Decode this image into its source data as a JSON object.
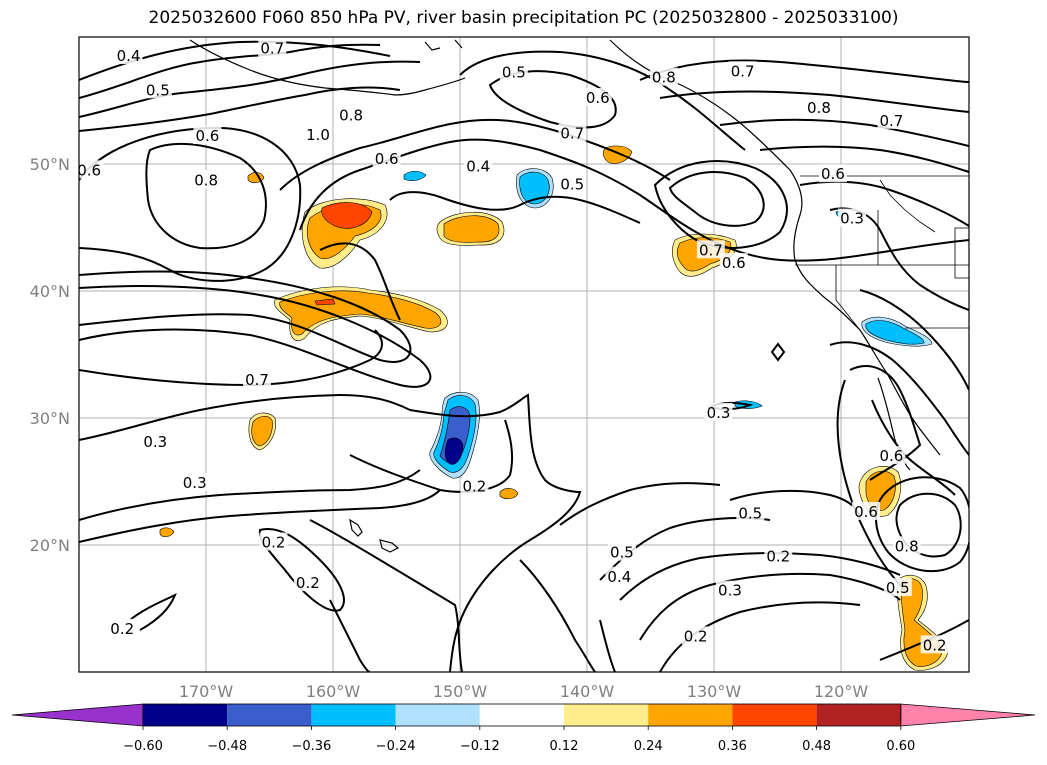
{
  "title": "2025032600 F060 850 hPa PV, river basin precipitation PC (2025032800 - 2025033100)",
  "map": {
    "projection": "plate-carree",
    "lon_range": [
      -180,
      -110
    ],
    "lat_range": [
      10,
      60
    ],
    "gridlines": true,
    "x_ticks": [
      "170°W",
      "160°W",
      "150°W",
      "140°W",
      "130°W",
      "120°W"
    ],
    "y_ticks": [
      "50°N",
      "40°N",
      "30°N",
      "20°N"
    ]
  },
  "contour_labels": [
    {
      "text": "0.4",
      "lon": -176.1,
      "lat": 58.5
    },
    {
      "text": "0.5",
      "lon": -173.8,
      "lat": 55.8
    },
    {
      "text": "0.7",
      "lon": -164.8,
      "lat": 59.1
    },
    {
      "text": "0.6",
      "lon": -169.9,
      "lat": 52.2
    },
    {
      "text": "1.0",
      "lon": -161.2,
      "lat": 52.3
    },
    {
      "text": "0.8",
      "lon": -158.6,
      "lat": 53.8
    },
    {
      "text": "0.6",
      "lon": -155.8,
      "lat": 50.4
    },
    {
      "text": "0.8",
      "lon": -170.0,
      "lat": 48.7
    },
    {
      "text": "0.6",
      "lon": -179.2,
      "lat": 49.5
    },
    {
      "text": "0.5",
      "lon": -145.8,
      "lat": 57.2
    },
    {
      "text": "0.4",
      "lon": -148.6,
      "lat": 49.8
    },
    {
      "text": "0.7",
      "lon": -141.2,
      "lat": 52.4
    },
    {
      "text": "0.6",
      "lon": -139.2,
      "lat": 55.2
    },
    {
      "text": "0.5",
      "lon": -141.2,
      "lat": 48.4
    },
    {
      "text": "0.8",
      "lon": -134.0,
      "lat": 56.8
    },
    {
      "text": "0.7",
      "lon": -127.8,
      "lat": 57.3
    },
    {
      "text": "0.8",
      "lon": -121.8,
      "lat": 54.4
    },
    {
      "text": "0.7",
      "lon": -116.1,
      "lat": 53.4
    },
    {
      "text": "0.6",
      "lon": -120.7,
      "lat": 49.2
    },
    {
      "text": "0.3",
      "lon": -119.2,
      "lat": 45.7
    },
    {
      "text": "0.7",
      "lon": -130.3,
      "lat": 43.2
    },
    {
      "text": "0.6",
      "lon": -128.5,
      "lat": 42.2
    },
    {
      "text": "0.7",
      "lon": -166.0,
      "lat": 33.0
    },
    {
      "text": "0.3",
      "lon": -174.0,
      "lat": 28.1
    },
    {
      "text": "0.3",
      "lon": -170.9,
      "lat": 24.9
    },
    {
      "text": "0.2",
      "lon": -148.9,
      "lat": 24.6
    },
    {
      "text": "0.3",
      "lon": -129.7,
      "lat": 30.4
    },
    {
      "text": "0.2",
      "lon": -164.7,
      "lat": 20.2
    },
    {
      "text": "0.2",
      "lon": -162.0,
      "lat": 17.0
    },
    {
      "text": "0.2",
      "lon": -176.6,
      "lat": 13.4
    },
    {
      "text": "0.5",
      "lon": -137.3,
      "lat": 19.4
    },
    {
      "text": "0.4",
      "lon": -137.5,
      "lat": 17.5
    },
    {
      "text": "0.5",
      "lon": -127.2,
      "lat": 22.5
    },
    {
      "text": "0.2",
      "lon": -125.0,
      "lat": 19.1
    },
    {
      "text": "0.3",
      "lon": -128.8,
      "lat": 16.4
    },
    {
      "text": "0.2",
      "lon": -131.5,
      "lat": 12.8
    },
    {
      "text": "0.6",
      "lon": -116.1,
      "lat": 27.0
    },
    {
      "text": "0.6",
      "lon": -118.1,
      "lat": 22.6
    },
    {
      "text": "0.8",
      "lon": -114.9,
      "lat": 19.9
    },
    {
      "text": "0.5",
      "lon": -115.6,
      "lat": 16.6
    },
    {
      "text": "0.2",
      "lon": -112.7,
      "lat": 12.1
    }
  ],
  "colorbar": {
    "levels": [
      -0.6,
      -0.48,
      -0.36,
      -0.24,
      -0.12,
      0.12,
      0.24,
      0.36,
      0.48,
      0.6
    ],
    "tick_labels": [
      "−0.60",
      "−0.48",
      "−0.36",
      "−0.24",
      "−0.12",
      "0.12",
      "0.24",
      "0.36",
      "0.48",
      "0.60"
    ],
    "colors": [
      "#9932cc",
      "#00008b",
      "#3a5fcd",
      "#00bfff",
      "#b0e2ff",
      "#ffffff",
      "#ffec8b",
      "#ffa500",
      "#ff4500",
      "#b22222",
      "#ff82ab"
    ],
    "extend": "both"
  }
}
